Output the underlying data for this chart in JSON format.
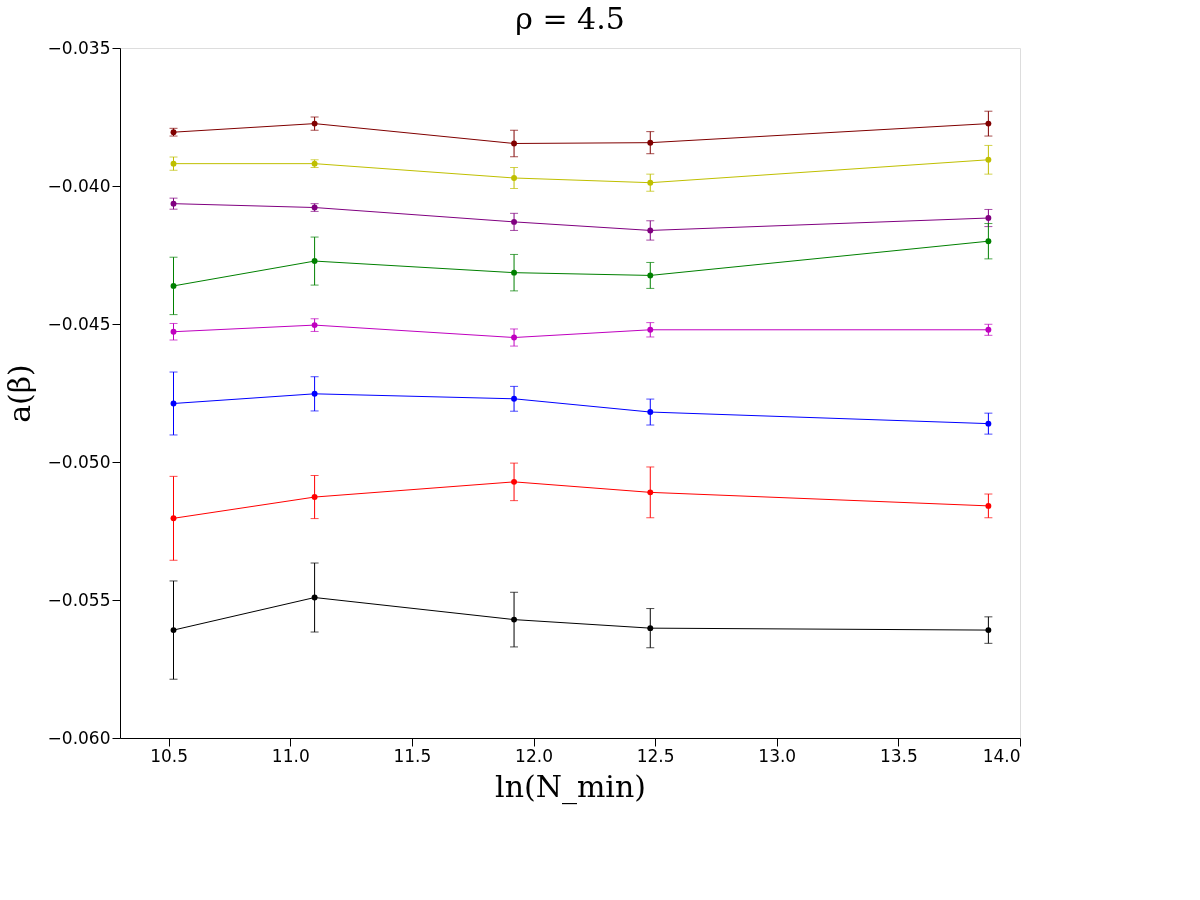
{
  "chart_data": {
    "type": "line",
    "title": "ρ = 4.5",
    "xlabel": "ln(N_min)",
    "ylabel": "a(β)",
    "x": [
      10.52,
      11.1,
      11.92,
      12.48,
      13.87
    ],
    "xlim": [
      10.3,
      14.0
    ],
    "xticks": [
      10.5,
      {
        "value": 11,
        "label": "11.0"
      },
      11.5,
      {
        "value": 12,
        "label": "12.0"
      },
      12.5,
      {
        "value": 13,
        "label": "13.0"
      },
      13.5,
      {
        "value": 14,
        "label": "14.0"
      }
    ],
    "ylim": [
      -0.06,
      -0.035
    ],
    "yticks": [
      {
        "value": -0.06,
        "label": "−0.060"
      },
      -0.055,
      {
        "value": -0.05,
        "label": "−0.050"
      },
      -0.045,
      {
        "value": -0.04,
        "label": "−0.040"
      },
      -0.035
    ],
    "grid": false,
    "marker": "circle",
    "line_style": "solid",
    "series": [
      {
        "color": "#800000",
        "values": [
          -0.03805,
          -0.03774,
          -0.03846,
          -0.03843,
          -0.03774
        ],
        "errors": [
          0.00014,
          0.00024,
          0.00048,
          0.0004,
          0.00045
        ]
      },
      {
        "color": "#bfbf00",
        "values": [
          -0.03919,
          -0.03919,
          -0.03971,
          -0.03988,
          -0.03905
        ],
        "errors": [
          0.00024,
          0.00014,
          0.00038,
          0.00031,
          0.00052
        ]
      },
      {
        "color": "#800080",
        "values": [
          -0.04064,
          -0.04078,
          -0.0413,
          -0.04161,
          -0.04116
        ],
        "errors": [
          0.0002,
          0.00014,
          0.00031,
          0.00035,
          0.00031
        ]
      },
      {
        "color": "#008000",
        "values": [
          -0.04362,
          -0.04272,
          -0.04314,
          -0.04324,
          -0.042
        ],
        "errors": [
          0.00104,
          0.00087,
          0.00066,
          0.00047,
          0.00064
        ]
      },
      {
        "color": "#bf00bf",
        "values": [
          -0.04528,
          -0.04504,
          -0.04549,
          -0.04521,
          -0.04521
        ],
        "errors": [
          0.0003,
          0.00023,
          0.00031,
          0.00026,
          0.0002
        ]
      },
      {
        "color": "#0000ff",
        "values": [
          -0.04788,
          -0.04753,
          -0.04771,
          -0.04819,
          -0.04861
        ],
        "errors": [
          0.00114,
          0.00062,
          0.00045,
          0.00047,
          0.00038
        ]
      },
      {
        "color": "#ff0000",
        "values": [
          -0.05204,
          -0.05127,
          -0.05072,
          -0.0511,
          -0.05159
        ],
        "errors": [
          0.00152,
          0.00078,
          0.00068,
          0.00092,
          0.00043
        ]
      },
      {
        "color": "#000000",
        "values": [
          -0.05609,
          -0.05491,
          -0.05571,
          -0.05602,
          -0.05609
        ],
        "errors": [
          0.00178,
          0.00125,
          0.00099,
          0.00071,
          0.00048
        ]
      }
    ]
  }
}
